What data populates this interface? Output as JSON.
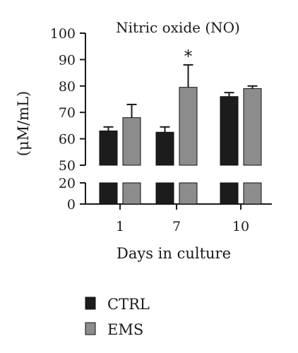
{
  "chart_data": {
    "type": "bar",
    "title": "Nitric oxide (NO)",
    "xlabel": "Days in culture",
    "ylabel": "(μM/mL)",
    "categories": [
      "1",
      "7",
      "10"
    ],
    "series": [
      {
        "name": "CTRL",
        "color": "#1c1c1c",
        "values": [
          63,
          62.5,
          76
        ],
        "errors": [
          1.5,
          2,
          1.5
        ]
      },
      {
        "name": "EMS",
        "color": "#8c8c8c",
        "values": [
          68,
          79.5,
          79
        ],
        "errors": [
          5,
          8.5,
          1
        ]
      }
    ],
    "y_axis_lower": {
      "range": [
        0,
        20
      ],
      "ticks": [
        "0",
        "20"
      ]
    },
    "y_axis_upper": {
      "range": [
        50,
        100
      ],
      "ticks": [
        "50",
        "60",
        "70",
        "80",
        "90",
        "100"
      ]
    },
    "axis_break": true,
    "annotations": [
      {
        "category": "7",
        "series": "EMS",
        "text": "*"
      }
    ],
    "legend_position": "bottom-left",
    "grid": false
  }
}
